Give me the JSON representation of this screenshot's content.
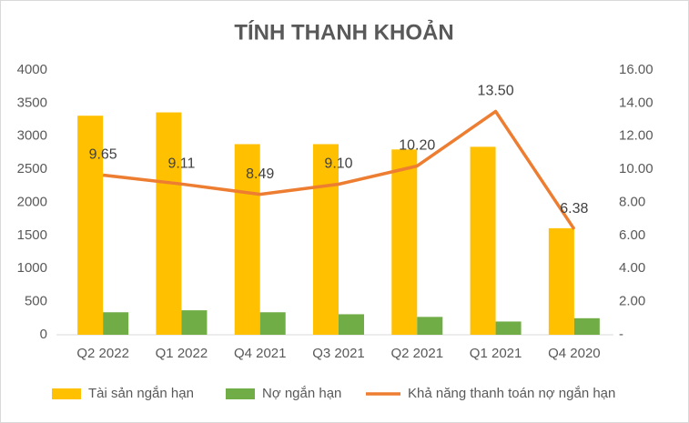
{
  "chart_data": {
    "type": "bar-line",
    "title": "TÍNH THANH KHOẢN",
    "categories": [
      "Q2 2022",
      "Q1 2022",
      "Q4 2021",
      "Q3 2021",
      "Q2 2021",
      "Q1 2021",
      "Q4 2020"
    ],
    "series": [
      {
        "name": "Tài sản ngắn hạn",
        "type": "bar",
        "color": "#FFC000",
        "values": [
          3310,
          3360,
          2880,
          2880,
          2800,
          2840,
          1610
        ]
      },
      {
        "name": "Nợ ngắn hạn",
        "type": "bar",
        "color": "#70AD47",
        "values": [
          340,
          370,
          340,
          310,
          270,
          200,
          250
        ]
      },
      {
        "name": "Khả năng thanh toán nợ ngắn hạn",
        "type": "line",
        "axis": "y2",
        "color": "#ED7D31",
        "values": [
          9.65,
          9.11,
          8.49,
          9.1,
          10.2,
          13.5,
          6.38
        ],
        "value_labels": [
          "9.65",
          "9.11",
          "8.49",
          "9.10",
          "10.20",
          "13.50",
          "6.38"
        ]
      }
    ],
    "ylim": [
      0,
      4000
    ],
    "yticks": [
      0,
      500,
      1000,
      1500,
      2000,
      2500,
      3000,
      3500,
      4000
    ],
    "y2lim": [
      0,
      16
    ],
    "y2ticks": [
      {
        "value": 0,
        "label": "-"
      },
      {
        "value": 2,
        "label": "2.00"
      },
      {
        "value": 4,
        "label": "4.00"
      },
      {
        "value": 6,
        "label": "6.00"
      },
      {
        "value": 8,
        "label": "8.00"
      },
      {
        "value": 10,
        "label": "10.00"
      },
      {
        "value": 12,
        "label": "12.00"
      },
      {
        "value": 14,
        "label": "14.00"
      },
      {
        "value": 16,
        "label": "16.00"
      }
    ],
    "grid": false,
    "legend": "bottom"
  }
}
